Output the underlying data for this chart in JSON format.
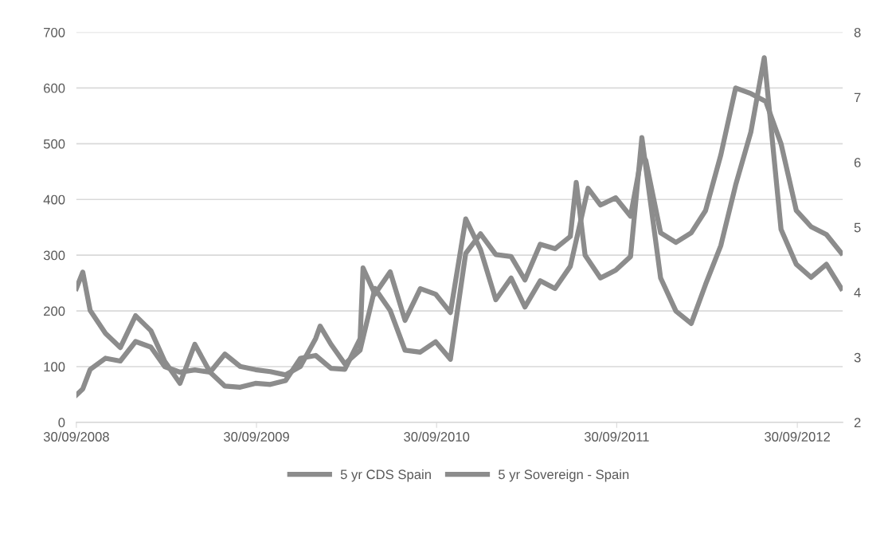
{
  "chart_data": {
    "type": "line",
    "series": [
      {
        "name": "5 yr CDS Spain",
        "color": "#8c8c8c",
        "axis": "y",
        "x": [
          "2008-09-30",
          "2008-10-13",
          "2008-10-28",
          "2008-11-28",
          "2008-12-28",
          "2009-01-28",
          "2009-02-28",
          "2009-03-28",
          "2009-04-28",
          "2009-05-28",
          "2009-06-28",
          "2009-07-28",
          "2009-08-28",
          "2009-09-28",
          "2009-10-28",
          "2009-11-28",
          "2009-12-28",
          "2010-01-28",
          "2010-02-28",
          "2010-03-28",
          "2010-04-28",
          "2010-05-04",
          "2010-05-28",
          "2010-06-28",
          "2010-07-28",
          "2010-08-28",
          "2010-09-28",
          "2010-10-28",
          "2010-11-28",
          "2010-12-28",
          "2011-01-28",
          "2011-02-28",
          "2011-03-28",
          "2011-04-28",
          "2011-05-28",
          "2011-06-28",
          "2011-08-03",
          "2011-08-28",
          "2011-09-28",
          "2011-10-28",
          "2011-11-20",
          "2011-11-28",
          "2011-12-28",
          "2012-01-28",
          "2012-02-28",
          "2012-03-28",
          "2012-04-28",
          "2012-05-28",
          "2012-06-28",
          "2012-07-28",
          "2012-08-28",
          "2012-09-28",
          "2012-10-28",
          "2012-11-28",
          "2012-12-28"
        ],
        "values": [
          49,
          60,
          95,
          115,
          110,
          145,
          135,
          100,
          90,
          94,
          90,
          65,
          63,
          70,
          68,
          75,
          115,
          120,
          97,
          95,
          150,
          277,
          230,
          270,
          183,
          240,
          230,
          197,
          365,
          310,
          220,
          259,
          207,
          254,
          240,
          280,
          420,
          390,
          403,
          370,
          480,
          470,
          340,
          323,
          340,
          380,
          480,
          600,
          590,
          576,
          500,
          380,
          351,
          337,
          304
        ]
      },
      {
        "name": "5 yr Sovereign - Spain",
        "color": "#8c8c8c",
        "axis": "y2",
        "x": [
          "2008-09-30",
          "2008-10-13",
          "2008-10-28",
          "2008-11-28",
          "2008-12-28",
          "2009-01-28",
          "2009-02-28",
          "2009-03-28",
          "2009-04-28",
          "2009-05-28",
          "2009-06-28",
          "2009-07-28",
          "2009-08-28",
          "2009-09-28",
          "2009-10-28",
          "2009-11-28",
          "2009-12-28",
          "2010-01-28",
          "2010-02-06",
          "2010-02-28",
          "2010-03-28",
          "2010-04-28",
          "2010-05-28",
          "2010-06-28",
          "2010-07-28",
          "2010-08-28",
          "2010-09-28",
          "2010-10-28",
          "2010-11-28",
          "2010-12-28",
          "2011-01-28",
          "2011-02-28",
          "2011-03-28",
          "2011-04-28",
          "2011-05-28",
          "2011-06-28",
          "2011-07-10",
          "2011-07-28",
          "2011-08-28",
          "2011-09-28",
          "2011-10-28",
          "2011-11-20",
          "2011-12-28",
          "2012-01-28",
          "2012-02-28",
          "2012-03-28",
          "2012-04-28",
          "2012-05-28",
          "2012-06-28",
          "2012-07-25",
          "2012-08-28",
          "2012-09-28",
          "2012-10-28",
          "2012-11-28",
          "2012-12-28"
        ],
        "values": [
          4.06,
          4.31,
          3.72,
          3.37,
          3.15,
          3.64,
          3.41,
          2.94,
          2.6,
          3.2,
          2.77,
          3.05,
          2.86,
          2.81,
          2.78,
          2.73,
          2.86,
          3.29,
          3.48,
          3.2,
          2.9,
          3.11,
          4.06,
          3.72,
          3.11,
          3.08,
          3.24,
          2.97,
          4.6,
          4.9,
          4.58,
          4.55,
          4.19,
          4.74,
          4.67,
          4.86,
          5.69,
          4.57,
          4.22,
          4.34,
          4.55,
          6.38,
          4.22,
          3.71,
          3.52,
          4.12,
          4.72,
          5.65,
          6.47,
          7.61,
          4.97,
          4.43,
          4.23,
          4.43,
          4.06
        ]
      }
    ],
    "xlim": [
      "2008-09-30",
      "2012-12-31"
    ],
    "xticks": [
      {
        "value": "2008-09-30",
        "label": "30/09/2008"
      },
      {
        "value": "2009-09-30",
        "label": "30/09/2009"
      },
      {
        "value": "2010-09-30",
        "label": "30/09/2010"
      },
      {
        "value": "2011-09-30",
        "label": "30/09/2011"
      },
      {
        "value": "2012-09-30",
        "label": "30/09/2012"
      }
    ],
    "ylim": [
      0,
      700
    ],
    "yticks": [
      0,
      100,
      200,
      300,
      400,
      500,
      600,
      700
    ],
    "y2lim": [
      2,
      8
    ],
    "y2ticks": [
      2,
      3,
      4,
      5,
      6,
      7,
      8
    ],
    "grid": "y",
    "legend": "bottom",
    "marker": "none",
    "line_style": "solid"
  }
}
